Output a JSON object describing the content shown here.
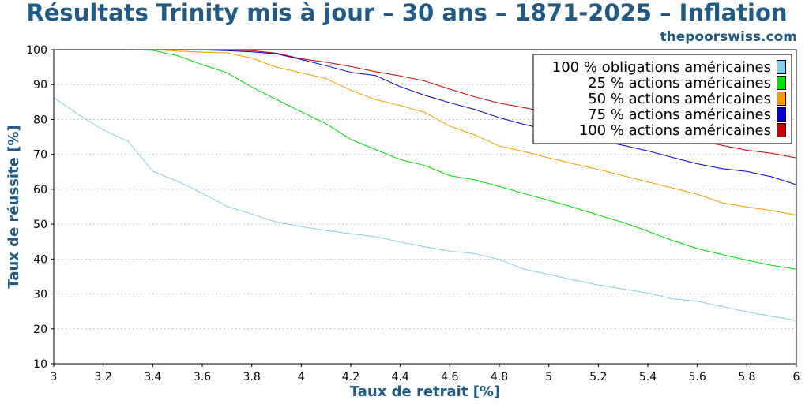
{
  "chart_data": {
    "type": "line",
    "title": "Résultats Trinity mis à jour – 30 ans – 1871-2025 – Inflation",
    "source_label": "thepoorswiss.com",
    "xlabel": "Taux de retrait [%]",
    "ylabel": "Taux de réussite [%]",
    "xlim": [
      3,
      6
    ],
    "ylim": [
      10,
      100
    ],
    "x_ticks": [
      "3",
      "3.2",
      "3.4",
      "3.6",
      "3.8",
      "4",
      "4.2",
      "4.4",
      "4.6",
      "4.8",
      "5",
      "5.2",
      "5.4",
      "5.6",
      "5.8",
      "6"
    ],
    "y_ticks": [
      "10",
      "20",
      "30",
      "40",
      "50",
      "60",
      "70",
      "80",
      "90",
      "100"
    ],
    "grid": "horizontal dotted",
    "legend_position": "top-right",
    "x": [
      3.0,
      3.1,
      3.2,
      3.3,
      3.4,
      3.5,
      3.6,
      3.7,
      3.8,
      3.9,
      4.0,
      4.1,
      4.2,
      4.3,
      4.4,
      4.5,
      4.6,
      4.7,
      4.8,
      4.9,
      5.0,
      5.1,
      5.2,
      5.3,
      5.4,
      5.5,
      5.6,
      5.7,
      5.8,
      5.9,
      6.0
    ],
    "series": [
      {
        "name": "100 % obligations américaines",
        "color": "#87ceeb",
        "values": [
          86.3,
          81.4,
          77.0,
          73.8,
          65.2,
          62.3,
          58.9,
          55.1,
          52.9,
          50.6,
          49.3,
          48.2,
          47.3,
          46.4,
          44.9,
          43.5,
          42.3,
          41.6,
          39.9,
          37.1,
          35.6,
          34.0,
          32.6,
          31.4,
          30.3,
          28.6,
          27.9,
          26.4,
          24.9,
          23.6,
          22.4
        ]
      },
      {
        "name": "25 % actions américaines",
        "color": "#00dd00",
        "values": [
          100,
          100,
          100,
          100,
          99.8,
          98.3,
          95.7,
          93.4,
          89.3,
          85.7,
          82.2,
          78.8,
          74.3,
          71.4,
          68.5,
          66.8,
          63.9,
          62.7,
          60.8,
          58.8,
          56.8,
          54.8,
          52.6,
          50.5,
          48.0,
          45.3,
          43.0,
          41.3,
          39.7,
          38.2,
          37.1
        ]
      },
      {
        "name": "50 % actions américaines",
        "color": "#ff9900",
        "values": [
          100,
          100,
          100,
          100,
          100,
          99.6,
          99.3,
          99.1,
          97.6,
          95.0,
          93.4,
          91.7,
          88.4,
          85.7,
          84.0,
          82.0,
          78.1,
          75.6,
          72.4,
          70.8,
          69.0,
          67.3,
          65.7,
          63.9,
          62.1,
          60.4,
          58.6,
          56.1,
          54.9,
          53.9,
          52.6
        ]
      },
      {
        "name": "75 % actions américaines",
        "color": "#0000cc",
        "values": [
          100,
          100,
          100,
          100,
          100,
          100,
          99.9,
          99.7,
          99.4,
          98.8,
          97.2,
          95.4,
          93.5,
          92.6,
          89.4,
          86.9,
          84.8,
          82.9,
          80.5,
          78.6,
          77.0,
          75.5,
          74.1,
          72.6,
          71.0,
          69.1,
          67.3,
          65.9,
          65.1,
          63.6,
          61.3
        ]
      },
      {
        "name": "100 % actions américaines",
        "color": "#cc0000",
        "values": [
          100,
          100,
          100,
          100,
          100,
          100,
          100,
          99.9,
          99.7,
          99.0,
          97.4,
          96.4,
          95.2,
          93.7,
          92.5,
          91.0,
          88.7,
          86.5,
          84.7,
          83.4,
          82.0,
          80.6,
          79.2,
          77.9,
          76.6,
          75.3,
          74.0,
          72.6,
          71.2,
          70.3,
          69.0
        ]
      }
    ]
  }
}
